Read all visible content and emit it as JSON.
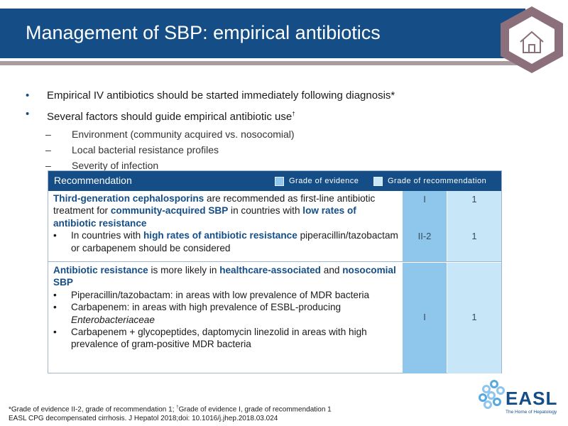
{
  "header": {
    "title": "Management of SBP: empirical antibiotics",
    "home_button": "home-icon"
  },
  "bullets": [
    {
      "text": "Empirical IV antibiotics should be started immediately following diagnosis*"
    },
    {
      "text": "Several factors should guide empirical antibiotic use",
      "mark": "†"
    }
  ],
  "sub_bullets": [
    "Environment (community acquired vs. nosocomial)",
    "Local bacterial resistance profiles",
    "Severity of infection"
  ],
  "table": {
    "header": "Recommendation",
    "legend_evidence": "Grade of evidence",
    "legend_recommendation": "Grade of recommendation",
    "colors": {
      "evidence": "#8ec6ec",
      "recommendation": "#c7e6f7",
      "header": "#154e87"
    },
    "row1": {
      "p1": "Third-generation cephalosporins",
      "p2": " are recommended as first-line antibiotic treatment for ",
      "p3": "community-acquired SBP",
      "p4": " in countries with ",
      "p5": "low rates of antibiotic resistance",
      "bullet_a": "In countries with ",
      "bullet_b": "high rates of antibiotic resistance",
      "bullet_c": " piperacillin/tazobactam or carbapenem should be considered",
      "ev1": "I",
      "rec1": "1",
      "ev2": "II-2",
      "rec2": "1"
    },
    "row2": {
      "p1": "Antibiotic resistance",
      "p2": " is more likely in ",
      "p3": "healthcare-associated",
      "p4": " and ",
      "p5": "nosocomial SBP",
      "bullet1": "Piperacillin/tazobactam: in areas with low prevalence of MDR bacteria",
      "bullet2a": "Carbapenem: in areas with high prevalence of ESBL-producing ",
      "bullet2b": "Enterobacteriaceae",
      "bullet3": "Carbapenem + glycopeptides, daptomycin linezolid in areas with high prevalence of gram-positive MDR bacteria",
      "ev": "I",
      "rec": "1"
    }
  },
  "footnote": {
    "line1_a": "*Grade of evidence II-2, grade of recommendation 1; ",
    "line1_mark": "†",
    "line1_b": "Grade of evidence I, grade of recommendation 1",
    "line2": "EASL CPG decompensated cirrhosis. J Hepatol 2018;doi: 10.1016/j.jhep.2018.03.024"
  },
  "logo": {
    "name": "EASL",
    "tagline": "The Home of Hepatology"
  }
}
